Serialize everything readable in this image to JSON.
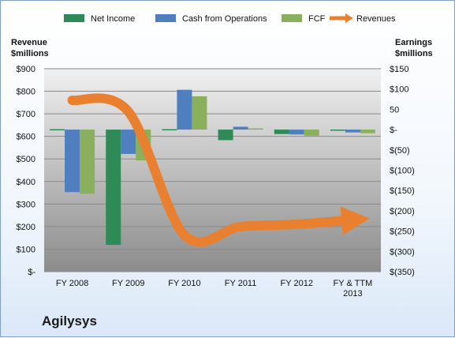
{
  "company": "Agilysys",
  "chart_data": {
    "type": "bar",
    "categories": [
      "FY 2008",
      "FY 2009",
      "FY 2010",
      "FY 2011",
      "FY 2012",
      "FY & TTM 2013"
    ],
    "series": [
      {
        "name": "Net Income",
        "type": "bar",
        "axis": "right",
        "color": "#2e8a57",
        "values": [
          1,
          -284,
          1,
          -26,
          -11,
          -1
        ]
      },
      {
        "name": "Cash from Operations",
        "type": "bar",
        "axis": "right",
        "color": "#4f7fbf",
        "values": [
          -154,
          -60,
          98,
          7,
          -12,
          -7
        ]
      },
      {
        "name": "FCF",
        "type": "bar",
        "axis": "right",
        "color": "#8ab05e",
        "values": [
          -158,
          -76,
          82,
          3,
          -15,
          -9
        ]
      },
      {
        "name": "Revenues",
        "type": "line",
        "axis": "left",
        "color": "#e8802f",
        "values": [
          760,
          710,
          162,
          200,
          210,
          230
        ]
      }
    ],
    "ylabel": "Revenue $millions",
    "ylabel_right": "Earnings $millions",
    "ylim": [
      0,
      900
    ],
    "ylim_right": [
      -350,
      150
    ],
    "yticks": [
      "$-",
      "$100",
      "$200",
      "$300",
      "$400",
      "$500",
      "$600",
      "$700",
      "$800",
      "$900"
    ],
    "yticks_right": [
      "$(350)",
      "$(300)",
      "$(250)",
      "$(200)",
      "$(150)",
      "$(100)",
      "$(50)",
      "$-",
      "50",
      "$100",
      "$150"
    ],
    "legend": "top",
    "grid": true
  }
}
